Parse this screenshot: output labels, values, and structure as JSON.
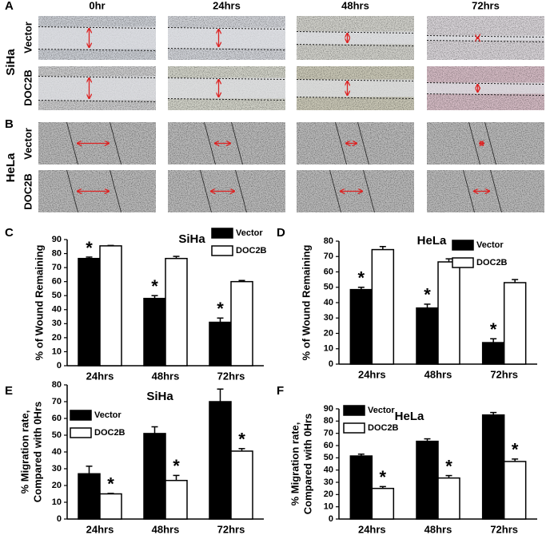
{
  "panel_labels": [
    "A",
    "B",
    "C",
    "D",
    "E",
    "F"
  ],
  "panel_a": {
    "cell_line": "SiHa",
    "columns": [
      "0hr",
      "24hrs",
      "48hrs",
      "72hrs"
    ],
    "rows": [
      "Vector",
      "DOC2B"
    ]
  },
  "panel_b": {
    "cell_line": "HeLa",
    "rows": [
      "Vector",
      "DOC2B"
    ]
  },
  "chart_data": [
    {
      "type": "bar",
      "title": "SiHa",
      "ylabel": [
        "% of Wound Remaining"
      ],
      "categories": [
        "24hrs",
        "48hrs",
        "72hrs"
      ],
      "series": [
        {
          "name": "Vector",
          "color": "#000000",
          "values": [
            76.5,
            48,
            31
          ],
          "errors": [
            1,
            2,
            3
          ]
        },
        {
          "name": "DOC2B",
          "color": "#ffffff",
          "values": [
            85.5,
            76.5,
            60
          ],
          "errors": [
            0.3,
            1.5,
            0.8
          ]
        }
      ],
      "annotations": [
        {
          "text": "*",
          "series": 0,
          "category": 0
        },
        {
          "text": "*",
          "series": 0,
          "category": 1
        },
        {
          "text": "*",
          "series": 0,
          "category": 2
        }
      ],
      "ylim": [
        0,
        90
      ],
      "yticks": [
        0,
        10,
        20,
        30,
        40,
        50,
        60,
        70,
        80,
        90
      ],
      "legend": "upper right"
    },
    {
      "type": "bar",
      "title": "HeLa",
      "ylabel": [
        "% of Wound Remaining"
      ],
      "categories": [
        "24hrs",
        "48hrs",
        "72hrs"
      ],
      "series": [
        {
          "name": "Vector",
          "color": "#000000",
          "values": [
            48.5,
            36.5,
            14
          ],
          "errors": [
            1.5,
            2.5,
            2.5
          ]
        },
        {
          "name": "DOC2B",
          "color": "#ffffff",
          "values": [
            74.5,
            66.5,
            53
          ],
          "errors": [
            2,
            2,
            2
          ]
        }
      ],
      "annotations": [
        {
          "text": "*",
          "series": 0,
          "category": 0
        },
        {
          "text": "*",
          "series": 0,
          "category": 1
        },
        {
          "text": "*",
          "series": 0,
          "category": 2
        }
      ],
      "ylim": [
        0,
        80
      ],
      "yticks": [
        0,
        10,
        20,
        30,
        40,
        50,
        60,
        70,
        80
      ],
      "legend": "upper right"
    },
    {
      "type": "bar",
      "title": "SiHa",
      "ylabel": [
        "% Migration rate,",
        "Compared with 0Hrs"
      ],
      "categories": [
        "24hrs",
        "48hrs",
        "72hrs"
      ],
      "series": [
        {
          "name": "Vector",
          "color": "#000000",
          "values": [
            27,
            51,
            70
          ],
          "errors": [
            4.5,
            4,
            7.5
          ]
        },
        {
          "name": "DOC2B",
          "color": "#ffffff",
          "values": [
            15,
            23,
            40.5
          ],
          "errors": [
            0.3,
            3,
            1.5
          ]
        }
      ],
      "annotations": [
        {
          "text": "*",
          "series": 1,
          "category": 0
        },
        {
          "text": "*",
          "series": 1,
          "category": 1
        },
        {
          "text": "*",
          "series": 1,
          "category": 2
        }
      ],
      "ylim": [
        0,
        80
      ],
      "yticks": [
        0,
        10,
        20,
        30,
        40,
        50,
        60,
        70,
        80
      ],
      "legend": "upper left"
    },
    {
      "type": "bar",
      "title": "HeLa",
      "ylabel": [
        "% Migration rate,",
        "Compared with 0Hrs"
      ],
      "categories": [
        "24hrs",
        "48hrs",
        "72hrs"
      ],
      "series": [
        {
          "name": "Vector",
          "color": "#000000",
          "values": [
            51.5,
            63.5,
            85
          ],
          "errors": [
            1.5,
            2,
            2
          ]
        },
        {
          "name": "DOC2B",
          "color": "#ffffff",
          "values": [
            25,
            33.5,
            47
          ],
          "errors": [
            1.5,
            2,
            2
          ]
        }
      ],
      "annotations": [
        {
          "text": "*",
          "series": 1,
          "category": 0
        },
        {
          "text": "*",
          "series": 1,
          "category": 1
        },
        {
          "text": "*",
          "series": 1,
          "category": 2
        }
      ],
      "ylim": [
        0,
        90
      ],
      "yticks": [
        0,
        10,
        20,
        30,
        40,
        50,
        60,
        70,
        80,
        90
      ],
      "legend": "upper left"
    }
  ]
}
